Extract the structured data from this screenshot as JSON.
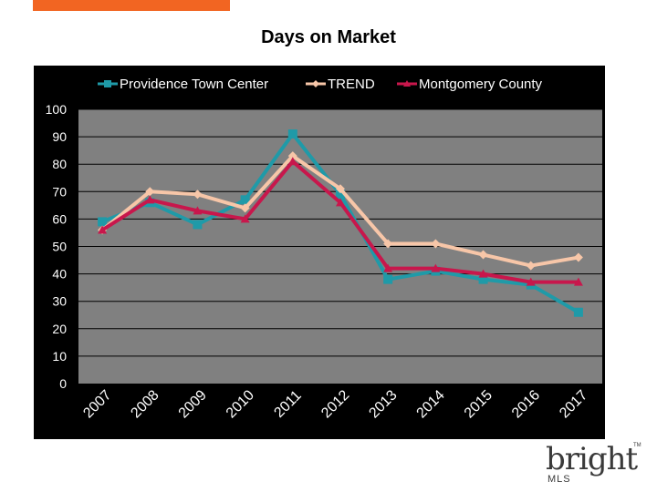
{
  "chart_data": {
    "type": "line",
    "title": "Days on Market",
    "categories": [
      "2007",
      "2008",
      "2009",
      "2010",
      "2011",
      "2012",
      "2013",
      "2014",
      "2015",
      "2016",
      "2017"
    ],
    "ylim": [
      0,
      100
    ],
    "yticks": [
      0,
      10,
      20,
      30,
      40,
      50,
      60,
      70,
      80,
      90,
      100
    ],
    "grid": true,
    "legend": "top",
    "series": [
      {
        "name": "Providence Town Center",
        "color": "#1f9aa8",
        "marker": "square",
        "values": [
          59,
          66,
          58,
          67,
          91,
          69,
          38,
          41,
          38,
          36,
          26
        ]
      },
      {
        "name": "TREND",
        "color": "#f7c6a8",
        "marker": "diamond",
        "values": [
          56,
          70,
          69,
          64,
          83,
          71,
          51,
          51,
          47,
          43,
          46
        ]
      },
      {
        "name": "Montgomery County",
        "color": "#c8174c",
        "marker": "triangle",
        "values": [
          56,
          67,
          63,
          60,
          81,
          66,
          42,
          42,
          40,
          37,
          37
        ]
      }
    ]
  },
  "logo": {
    "word": "bright",
    "sub": "MLS",
    "tm": "TM",
    "accent": "#f26522"
  }
}
